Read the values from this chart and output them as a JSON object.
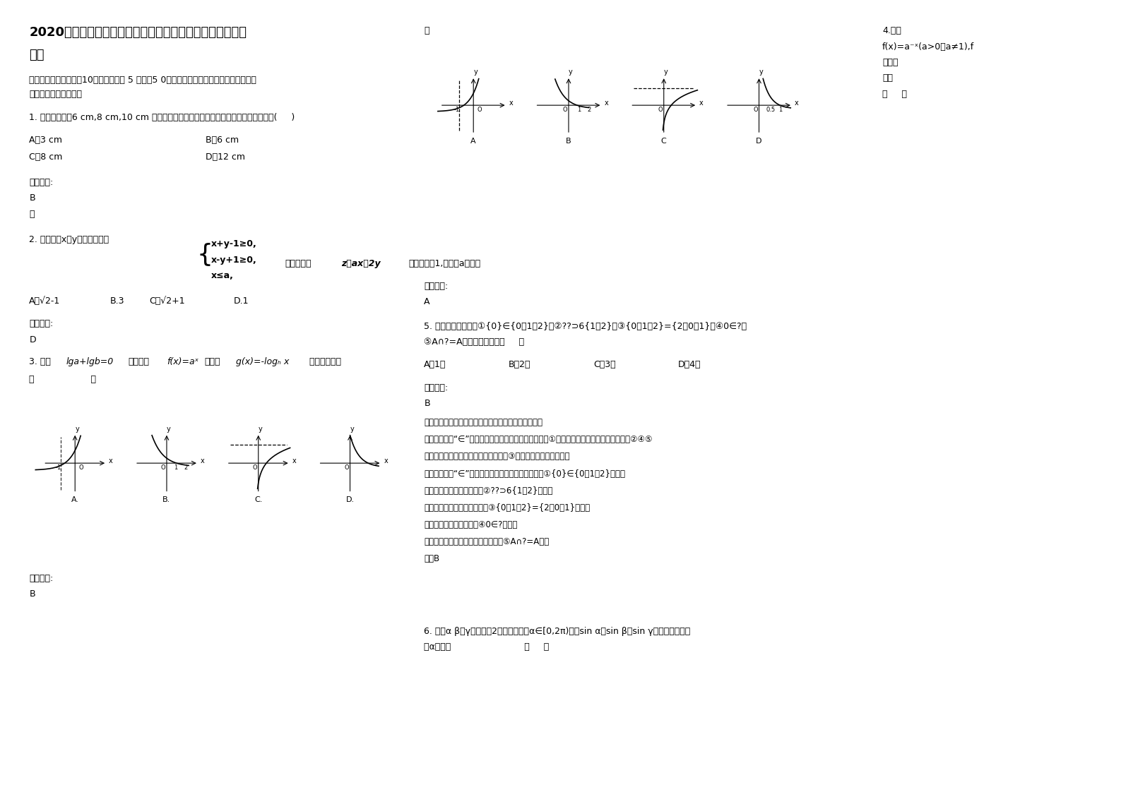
{
  "bg_color": "#ffffff",
  "title_line1": "2020年湖南省永州市龚家坪镇第一中学高一数学文测试题含",
  "title_line2": "解析",
  "section1": "一、选择题：本大题入10小题，每小题 5 分，共5 0分。在每小题给出的四个选项中，只有",
  "section1b": "是一个符合题目要求的",
  "q1": "1. 把直径分别为6 cm,8 cm,10 cm 的三个铁球燕成一个大铁球，则这个大铁球的半径为(     )",
  "q1_A": "A．3 cm",
  "q1_B": "B．6 cm",
  "q1_C": "C．8 cm",
  "q1_D": "D．12 cm",
  "ans_label": "参考答案:",
  "ans_B": "B",
  "ans_D": "D",
  "ans_A": "A",
  "note": "略",
  "q2_pre": "2. 已知实数x，y满足不等式组",
  "q2_ineq1": "x+y-1≥0,",
  "q2_ineq2": "x-y+1≥0,",
  "q2_ineq3": "x≤a,",
  "q2_post": "若目标函数",
  "q2_func": "z＝ax－2y",
  "q2_tail": "的最大値为1,则实数a的値是",
  "q2_A": "A．√2-1",
  "q2_B": "B.3",
  "q2_C": "C．√2+1",
  "q2_D": "D.1",
  "q3_pre": "3. 已知",
  "q3_cond": "lga+lgb=0",
  "q3_mid": "，则函数",
  "q3_f": "f(x)=aˣ",
  "q3_mid2": "与函数",
  "q3_g": "g(x)=-logₕ x",
  "q3_tail": " 的图象可能是",
  "q3_paren": "（                    ）",
  "note_lue": "略",
  "q4_label": "4.已知",
  "q4_func": "f(x)=a⁻ˣ(a>0且a≠1),f",
  "q4_img": "的图象",
  "q4_dazhi": "大致",
  "q4_paren": "（     ）",
  "q5_text1": "5. 以下五个写法中：①{0}∈{0，1，2}；②??⊃6{1，2}；③{0，1，2}={2，0，1}；④0∈?；",
  "q5_text2": "⑤A∩?=A，正确的个数有（     ）",
  "q5_A": "A．1个",
  "q5_B": "B．2个",
  "q5_C": "C．3个",
  "q5_D": "D．4个",
  "ana1": "【考点】子集与交集、并集运算的转换：集合的相等。",
  "ana2": "【分析】根据“∈”用于表示集合与元素的关系，可判断①的真假；根据空集的性质，可判断②④⑤",
  "ana3": "的正误；根据合元素的无序性，可判断③的对错，进而得到答案。",
  "ana4": "【解答】解：“∈”用于表示集合与元素的关系，故：①{0}∈{0，1，2}错误；",
  "ana5": "空集是任一集合的子集，故②??⊃6{1，2}正确；",
  "ana6": "根据集合元素的无序性，可得③{0，1，2}={2，0，1}正确；",
  "ana7": "空集不包含任何元素，故④0∈?错误；",
  "ana8": "空集与任一集合的交集均为空集，故⑤A∩?=A错误",
  "ana9": "故选B",
  "q6_text1": "6. 已知α β，γ成公比为2的等比数列，α∈[0,2π)，且sin α，sin β，sin γ也成等比数列，",
  "q6_text2": "则α的値为                          （     ）"
}
